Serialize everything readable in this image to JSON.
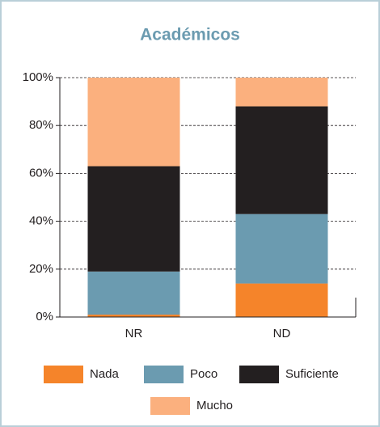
{
  "chart_data": {
    "type": "stacked_bar",
    "title": "Académicos",
    "categories": [
      "NR",
      "ND"
    ],
    "series": [
      {
        "name": "Nada",
        "color": "#f5842a",
        "values": [
          1,
          14
        ]
      },
      {
        "name": "Poco",
        "color": "#6b9bb0",
        "values": [
          18,
          29
        ]
      },
      {
        "name": "Suficiente",
        "color": "#231f20",
        "values": [
          44,
          45
        ]
      },
      {
        "name": "Mucho",
        "color": "#fbb07e",
        "values": [
          37,
          12
        ]
      }
    ],
    "ylim": [
      0,
      100
    ],
    "yticks": [
      {
        "value": 0,
        "label": "0%"
      },
      {
        "value": 20,
        "label": "20%"
      },
      {
        "value": 40,
        "label": "40%"
      },
      {
        "value": 60,
        "label": "60%"
      },
      {
        "value": 80,
        "label": "80%"
      },
      {
        "value": 100,
        "label": "100%"
      }
    ],
    "grid": true
  }
}
